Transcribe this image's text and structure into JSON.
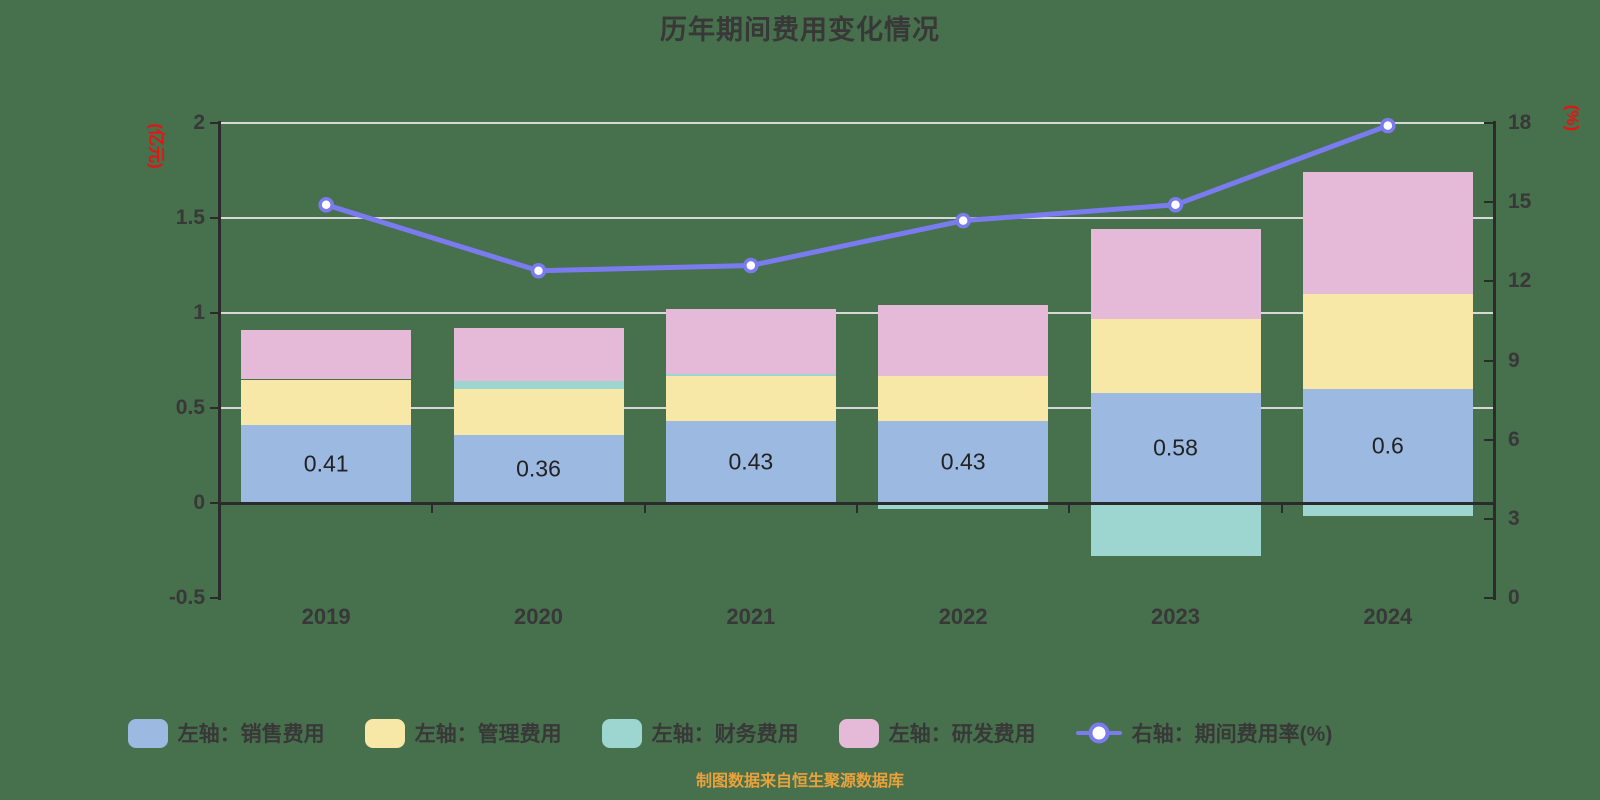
{
  "title": "历年期间费用变化情况",
  "footer": "制图数据来自恒生聚源数据库",
  "colors": {
    "background": "#47704d",
    "text_dark": "#383838",
    "axis_line": "#2b2b2b",
    "gridline": "#d8d8d8",
    "unit_red": "#e81212",
    "footer_orange": "#e9a23b",
    "bar_label": "#222222",
    "sales": "#9cb9e2",
    "admin": "#f7e8a8",
    "finance": "#9dd6d1",
    "rnd": "#e5b9d8",
    "line": "#7b7bf0",
    "marker_fill": "#ffffff"
  },
  "chart_data": {
    "type": "combo: stacked bar (left axis) + line (right axis)",
    "categories": [
      "2019",
      "2020",
      "2021",
      "2022",
      "2023",
      "2024"
    ],
    "left_axis": {
      "unit": "(亿元)",
      "min": -0.5,
      "max": 2,
      "ticks": [
        "2",
        "1.5",
        "1",
        "0.5",
        "0",
        "-0.5"
      ]
    },
    "right_axis": {
      "unit": "(%)",
      "min": 0,
      "max": 18,
      "ticks": [
        "18",
        "15",
        "12",
        "9",
        "6",
        "3",
        "0"
      ]
    },
    "grid": true,
    "legend_position": "bottom",
    "bar_series": [
      {
        "name": "左轴：销售费用",
        "color_key": "sales",
        "values": [
          0.41,
          0.36,
          0.43,
          0.43,
          0.58,
          0.6
        ],
        "data_labels": [
          "0.41",
          "0.36",
          "0.43",
          "0.43",
          "0.58",
          "0.6"
        ]
      },
      {
        "name": "左轴：管理费用",
        "color_key": "admin",
        "values": [
          0.24,
          0.24,
          0.24,
          0.24,
          0.39,
          0.5
        ],
        "data_labels": null
      },
      {
        "name": "左轴：财务费用",
        "color_key": "finance",
        "values": [
          0,
          0.04,
          0.01,
          -0.03,
          -0.28,
          -0.07
        ],
        "data_labels": null
      },
      {
        "name": "左轴：研发费用",
        "color_key": "rnd",
        "values": [
          0.26,
          0.28,
          0.34,
          0.37,
          0.47,
          0.64
        ],
        "data_labels": null
      }
    ],
    "line_series": {
      "name": "右轴：期间费用率(%)",
      "color_key": "line",
      "values": [
        14.9,
        12.4,
        12.6,
        14.3,
        14.9,
        17.9
      ]
    }
  },
  "legend": [
    {
      "label": "左轴：销售费用",
      "type": "swatch",
      "color_key": "sales"
    },
    {
      "label": "左轴：管理费用",
      "type": "swatch",
      "color_key": "admin"
    },
    {
      "label": "左轴：财务费用",
      "type": "swatch",
      "color_key": "finance"
    },
    {
      "label": "左轴：研发费用",
      "type": "swatch",
      "color_key": "rnd"
    },
    {
      "label": "右轴：期间费用率(%)",
      "type": "line",
      "color_key": "line"
    }
  ]
}
